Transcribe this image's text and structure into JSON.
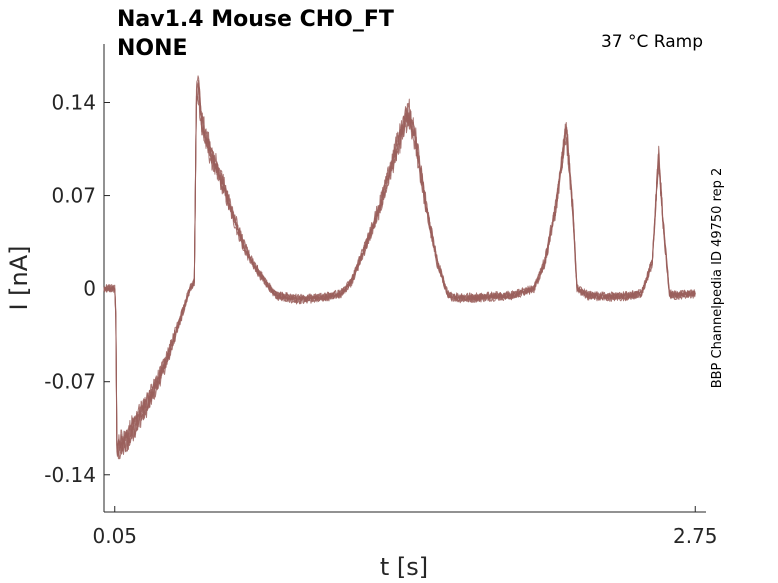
{
  "chart_data": {
    "type": "line",
    "title_line1": "Nav1.4  Mouse  CHO_FT",
    "title_line2": "NONE",
    "condition": "37 °C  Ramp",
    "side_note": "BBP Channelpedia ID 49750 rep 2",
    "xlabel": "t [s]",
    "ylabel": "I [nA]",
    "x_ticks": [
      {
        "value": 0.05,
        "label": "0.05"
      },
      {
        "value": 2.75,
        "label": "2.75"
      }
    ],
    "y_ticks": [
      {
        "value": 0.14,
        "label": "0.14"
      },
      {
        "value": 0.07,
        "label": "0.07"
      },
      {
        "value": 0,
        "label": "0"
      },
      {
        "value": -0.07,
        "label": "-0.07"
      },
      {
        "value": -0.14,
        "label": "-0.14"
      }
    ],
    "xlim": [
      0.0,
      2.8
    ],
    "ylim": [
      -0.168,
      0.184
    ],
    "trace_color": "#9a5f5c",
    "series": [
      {
        "x": [
          0.0,
          0.05,
          0.055,
          0.06,
          0.1,
          0.15,
          0.2,
          0.25,
          0.3,
          0.34,
          0.4,
          0.42,
          0.43,
          0.44,
          0.455,
          0.47,
          0.5,
          0.55,
          0.6,
          0.65,
          0.7,
          0.75,
          0.8,
          0.9,
          1.0,
          1.1,
          1.15,
          1.2,
          1.28,
          1.35,
          1.4,
          1.42,
          1.45,
          1.5,
          1.55,
          1.6,
          1.65,
          1.7,
          1.8,
          1.9,
          2.0,
          2.05,
          2.1,
          2.15,
          2.18,
          2.2,
          2.25,
          2.3,
          2.4,
          2.5,
          2.55,
          2.58,
          2.6,
          2.63,
          2.66,
          2.7,
          2.75
        ],
        "y": [
          0.0,
          0.0,
          -0.02,
          -0.12,
          -0.115,
          -0.1,
          -0.087,
          -0.07,
          -0.05,
          -0.03,
          0.0,
          0.005,
          0.145,
          0.15,
          0.125,
          0.115,
          0.1,
          0.08,
          0.055,
          0.032,
          0.017,
          0.005,
          -0.005,
          -0.008,
          -0.007,
          -0.004,
          0.005,
          0.025,
          0.06,
          0.1,
          0.125,
          0.13,
          0.11,
          0.06,
          0.02,
          -0.005,
          -0.007,
          -0.007,
          -0.006,
          -0.005,
          0.0,
          0.02,
          0.06,
          0.12,
          0.06,
          0.0,
          -0.005,
          -0.006,
          -0.006,
          -0.004,
          0.02,
          0.1,
          0.05,
          -0.004,
          -0.005,
          -0.004,
          -0.004
        ]
      }
    ]
  }
}
